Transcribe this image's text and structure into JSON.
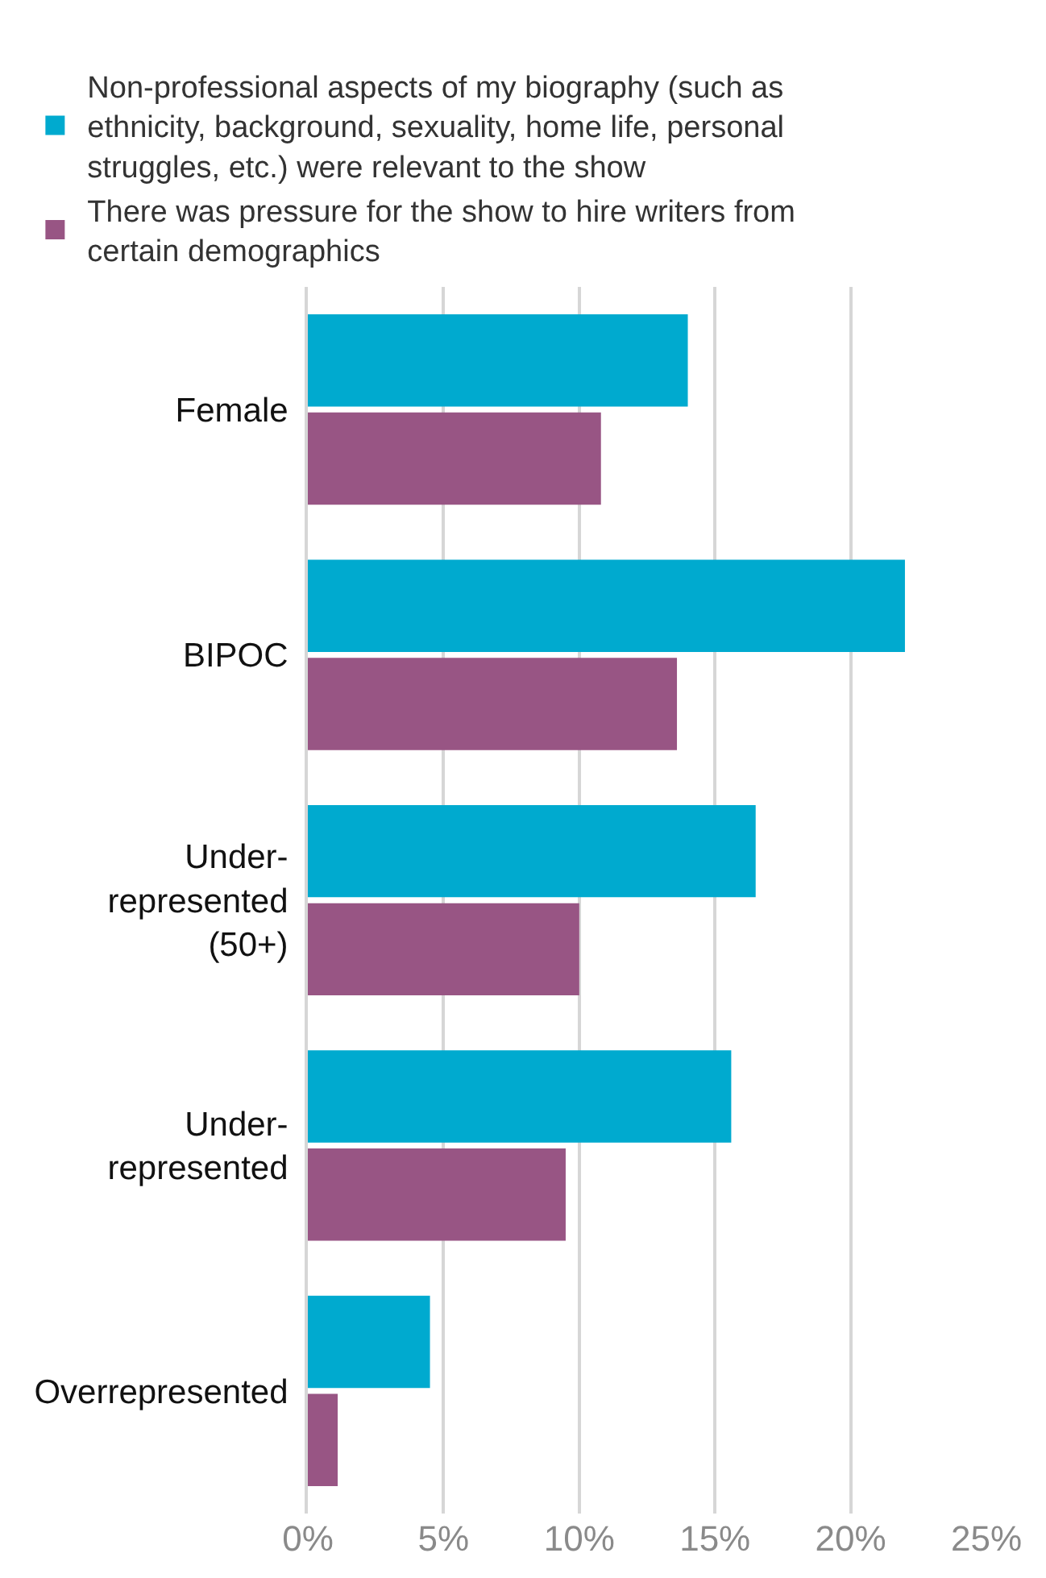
{
  "chart_data": {
    "type": "bar",
    "orientation": "horizontal",
    "categories": [
      "Female",
      "BIPOC",
      "Under-represented (50+)",
      "Under-represented",
      "Overrepresented"
    ],
    "series": [
      {
        "name": "Non-professional aspects of my biography (such as ethnicity, background, sexuality, home life, personal struggles, etc.) were relevant to the show",
        "color": "#00aacf",
        "values": [
          14.0,
          22.0,
          16.5,
          15.6,
          4.5
        ]
      },
      {
        "name": "There was pressure for the show to hire writers from certain demographics",
        "color": "#985584",
        "values": [
          10.8,
          13.6,
          10.0,
          9.5,
          1.1
        ]
      }
    ],
    "xlim": [
      0,
      25
    ],
    "xticks": [
      {
        "value": 0,
        "label": "0%"
      },
      {
        "value": 5,
        "label": "5%"
      },
      {
        "value": 10,
        "label": "10%"
      },
      {
        "value": 15,
        "label": "15%"
      },
      {
        "value": 20,
        "label": "20%"
      },
      {
        "value": 25,
        "label": "25%"
      }
    ],
    "grid": "x",
    "legend": "top left"
  }
}
